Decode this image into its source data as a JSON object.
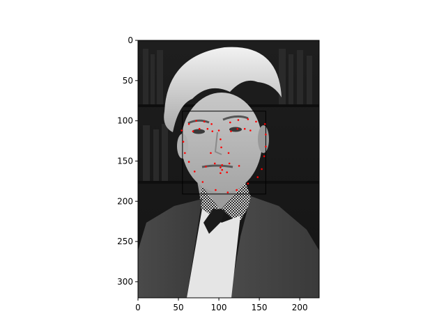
{
  "chart_data": {
    "type": "scatter",
    "title": "",
    "xlabel": "",
    "ylabel": "",
    "xlim": [
      0,
      224
    ],
    "ylim": [
      320,
      0
    ],
    "y_inverted": true,
    "grid": false,
    "legend": "none",
    "x_ticks": [
      0,
      50,
      100,
      150,
      200
    ],
    "y_ticks": [
      0,
      50,
      100,
      150,
      200,
      250,
      300
    ],
    "x_tick_labels": [
      "0",
      "50",
      "100",
      "150",
      "200"
    ],
    "y_tick_labels": [
      "0",
      "50",
      "100",
      "150",
      "200",
      "250",
      "300"
    ],
    "background_image": "grayscale portrait photo (person in suit with checkered shirt, bookshelves behind)",
    "marker_color": "#ff0000",
    "box_color": "#000000",
    "face_box": {
      "x0": 55,
      "y0": 88,
      "x1": 158,
      "y1": 191
    },
    "series": [
      {
        "points": [
          {
            "x": 54,
            "y": 112
          },
          {
            "x": 56,
            "y": 126
          },
          {
            "x": 58,
            "y": 140
          },
          {
            "x": 63,
            "y": 151
          },
          {
            "x": 70,
            "y": 163
          },
          {
            "x": 80,
            "y": 176
          },
          {
            "x": 96,
            "y": 186
          },
          {
            "x": 111,
            "y": 189
          },
          {
            "x": 122,
            "y": 186
          },
          {
            "x": 136,
            "y": 178
          },
          {
            "x": 148,
            "y": 170
          },
          {
            "x": 153,
            "y": 160
          },
          {
            "x": 156,
            "y": 144
          },
          {
            "x": 158,
            "y": 132
          },
          {
            "x": 158,
            "y": 117
          },
          {
            "x": 157,
            "y": 104
          },
          {
            "x": 63,
            "y": 104
          },
          {
            "x": 72,
            "y": 100
          },
          {
            "x": 82,
            "y": 101
          },
          {
            "x": 91,
            "y": 104
          },
          {
            "x": 114,
            "y": 102
          },
          {
            "x": 124,
            "y": 99
          },
          {
            "x": 136,
            "y": 98
          },
          {
            "x": 146,
            "y": 101
          },
          {
            "x": 100,
            "y": 112
          },
          {
            "x": 102,
            "y": 123
          },
          {
            "x": 103,
            "y": 133
          },
          {
            "x": 90,
            "y": 140
          },
          {
            "x": 112,
            "y": 140
          },
          {
            "x": 68,
            "y": 113
          },
          {
            "x": 76,
            "y": 110
          },
          {
            "x": 86,
            "y": 110
          },
          {
            "x": 92,
            "y": 113
          },
          {
            "x": 115,
            "y": 113
          },
          {
            "x": 123,
            "y": 110
          },
          {
            "x": 132,
            "y": 110
          },
          {
            "x": 139,
            "y": 112
          },
          {
            "x": 84,
            "y": 157
          },
          {
            "x": 95,
            "y": 153
          },
          {
            "x": 104,
            "y": 155
          },
          {
            "x": 113,
            "y": 153
          },
          {
            "x": 125,
            "y": 156
          },
          {
            "x": 104,
            "y": 161
          },
          {
            "x": 102,
            "y": 165
          },
          {
            "x": 110,
            "y": 164
          },
          {
            "x": 102,
            "y": 158
          }
        ]
      }
    ]
  }
}
